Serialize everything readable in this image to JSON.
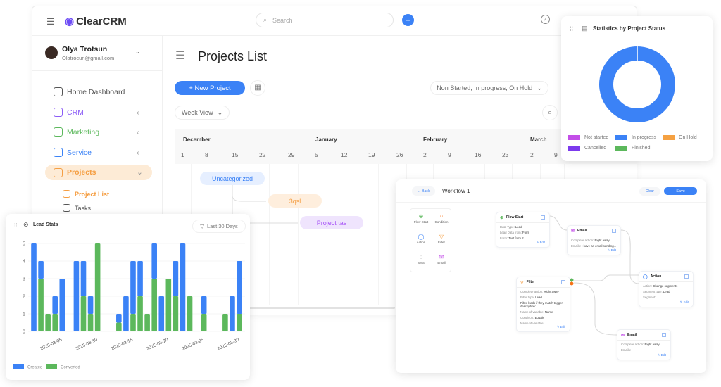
{
  "app": {
    "logo": "ClearCRM",
    "search_placeholder": "Search"
  },
  "user": {
    "name": "Olya Trotsun",
    "email": "Olatrocun@gmail.com"
  },
  "sidebar": {
    "items": [
      {
        "label": "Home Dashboard",
        "icon": "dashboard-icon",
        "color": "#555555"
      },
      {
        "label": "CRM",
        "icon": "crm-icon",
        "color": "#8b5cf6"
      },
      {
        "label": "Marketing",
        "icon": "marketing-icon",
        "color": "#5cb85c"
      },
      {
        "label": "Service",
        "icon": "service-icon",
        "color": "#3b82f6"
      },
      {
        "label": "Projects",
        "icon": "projects-icon",
        "color": "#f59e42",
        "active": true
      }
    ],
    "sub_items": [
      {
        "label": "Project List",
        "active": true
      },
      {
        "label": "Tasks"
      }
    ]
  },
  "main": {
    "title": "Projects List",
    "new_project": "+ New Project",
    "status_filter": "Non Started, In progress, On Hold",
    "view_select": "Week View",
    "gantt": {
      "months": [
        {
          "label": "December"
        },
        {
          "label": "January"
        },
        {
          "label": "February"
        },
        {
          "label": "March"
        }
      ],
      "days": [
        "1",
        "8",
        "15",
        "22",
        "29",
        "5",
        "12",
        "19",
        "26",
        "2",
        "9",
        "16",
        "23",
        "2",
        "9"
      ],
      "items": [
        {
          "label": "Uncategorized",
          "color": "#3b82f6"
        },
        {
          "label": "3qsl",
          "color": "#f59e42"
        },
        {
          "label": "Project tas",
          "color": "#a855f7"
        }
      ]
    }
  },
  "status_stats": {
    "title": "Statistics by Project Status",
    "chart_data": {
      "type": "pie",
      "donut": true,
      "title": "Statistics by Project Status",
      "legend_position": "bottom",
      "slices": [
        {
          "name": "Not started",
          "value": 0,
          "color": "#c34ee8"
        },
        {
          "name": "In progress",
          "value": 100,
          "color": "#3b82f6"
        },
        {
          "name": "On Hold",
          "value": 0,
          "color": "#f5a142"
        },
        {
          "name": "Cancelled",
          "value": 0,
          "color": "#7c3aed"
        },
        {
          "name": "Finished",
          "value": 0,
          "color": "#5cb85c"
        }
      ]
    }
  },
  "lead_stats": {
    "title": "Lead Stats",
    "range": "Last 30 Days",
    "chart_data": {
      "type": "bar",
      "stacked": true,
      "title": "Lead Stats",
      "ylim": [
        0,
        5
      ],
      "yticks": [
        0,
        1,
        2,
        3,
        4,
        5
      ],
      "x": [
        "2025-03-01",
        "2025-03-02",
        "2025-03-03",
        "2025-03-04",
        "2025-03-05",
        "2025-03-06",
        "2025-03-07",
        "2025-03-08",
        "2025-03-09",
        "2025-03-10",
        "2025-03-11",
        "2025-03-12",
        "2025-03-13",
        "2025-03-14",
        "2025-03-15",
        "2025-03-16",
        "2025-03-17",
        "2025-03-18",
        "2025-03-19",
        "2025-03-20",
        "2025-03-21",
        "2025-03-22",
        "2025-03-23",
        "2025-03-24",
        "2025-03-25",
        "2025-03-26",
        "2025-03-27",
        "2025-03-28",
        "2025-03-29",
        "2025-03-30"
      ],
      "xtick_labels": [
        "2025-03-05",
        "2025-03-10",
        "2025-03-15",
        "2025-03-20",
        "2025-03-25",
        "2025-03-30"
      ],
      "legend_position": "bottom-left",
      "series": [
        {
          "name": "Converted",
          "color": "#5cb85c",
          "values": [
            0,
            3,
            1,
            1,
            0,
            0,
            0,
            2,
            1,
            5,
            0,
            0,
            0.5,
            0,
            1,
            2,
            1,
            3,
            0,
            3,
            2,
            0,
            2,
            0,
            1,
            0,
            0,
            1,
            0,
            1
          ]
        },
        {
          "name": "Created",
          "color": "#3b82f6",
          "values": [
            5,
            1,
            0,
            1,
            3,
            0,
            4,
            2,
            1,
            0,
            0,
            0,
            0.5,
            2,
            3,
            2,
            0,
            2,
            2,
            0,
            2,
            5,
            0,
            0,
            1,
            0,
            0,
            0,
            2,
            3
          ]
        }
      ]
    }
  },
  "workflow": {
    "back": "← Back",
    "title": "Workflow 1",
    "clear": "Clear",
    "save": "Save",
    "palette": [
      {
        "label": "Flow Start",
        "glyph": "⊕",
        "color": "#5cb85c"
      },
      {
        "label": "Condition",
        "glyph": "⁘",
        "color": "#f97316"
      },
      {
        "label": "Action",
        "glyph": "◯",
        "color": "#3b82f6"
      },
      {
        "label": "Filter",
        "glyph": "▽",
        "color": "#f59e42"
      },
      {
        "label": "SMS",
        "glyph": "◌",
        "color": "#555555"
      },
      {
        "label": "Email",
        "glyph": "✉",
        "color": "#c34ee8"
      }
    ],
    "nodes": [
      {
        "title": "Flow Start",
        "glyph": "⊕",
        "color": "#5cb85c",
        "rows": [
          [
            "Data Type:",
            "Lead"
          ],
          [
            "Lead Data from:",
            "Form"
          ],
          [
            "Form:",
            "Test form 2"
          ]
        ]
      },
      {
        "title": "Email",
        "glyph": "✉",
        "color": "#c34ee8",
        "rows": [
          [
            "Complete action:",
            "Right away"
          ],
          [
            "Emails:",
            "I have an email sending..."
          ]
        ]
      },
      {
        "title": "Action",
        "glyph": "◯",
        "color": "#3b82f6",
        "rows": [
          [
            "Action:",
            "Change segments"
          ],
          [
            "Segment type:",
            "Lead"
          ],
          [
            "Segment:",
            ""
          ]
        ]
      },
      {
        "title": "Filter",
        "glyph": "▽",
        "color": "#f59e42",
        "rows": [
          [
            "Complete action:",
            "Right away"
          ],
          [
            "Filter type:",
            "Lead"
          ],
          [
            "",
            "Filter leads if they match trigger description:"
          ],
          [
            "Name of variable:",
            "Name"
          ],
          [
            "Condition:",
            "Equals"
          ],
          [
            "Name of variable:",
            ""
          ]
        ]
      },
      {
        "title": "Email",
        "glyph": "✉",
        "color": "#c34ee8",
        "rows": [
          [
            "Complete action:",
            "Right away"
          ],
          [
            "Emails:",
            ""
          ]
        ]
      }
    ],
    "edit_label": "✎ Edit"
  }
}
